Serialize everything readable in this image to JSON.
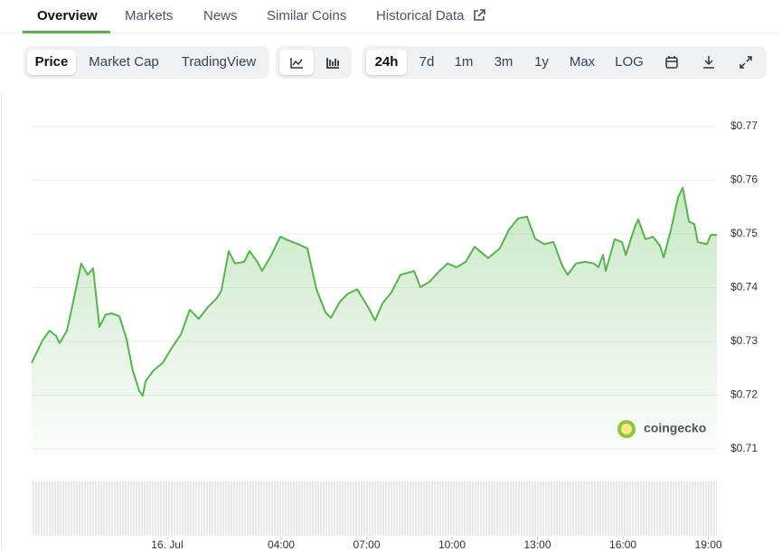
{
  "tabs": [
    {
      "label": "Overview",
      "active": true
    },
    {
      "label": "Markets",
      "active": false
    },
    {
      "label": "News",
      "active": false
    },
    {
      "label": "Similar Coins",
      "active": false
    },
    {
      "label": "Historical Data",
      "active": false
    }
  ],
  "toolbar": {
    "views": [
      {
        "label": "Price",
        "active": true
      },
      {
        "label": "Market Cap",
        "active": false
      },
      {
        "label": "TradingView",
        "active": false
      }
    ],
    "ranges": [
      {
        "label": "24h",
        "active": true
      },
      {
        "label": "7d",
        "active": false
      },
      {
        "label": "1m",
        "active": false
      },
      {
        "label": "3m",
        "active": false
      },
      {
        "label": "1y",
        "active": false
      },
      {
        "label": "Max",
        "active": false
      },
      {
        "label": "LOG",
        "active": false
      }
    ]
  },
  "watermark": "coingecko",
  "chart_data": {
    "type": "area",
    "color": "#57b34d",
    "grid": true,
    "x": [
      -4.76,
      -4.38,
      -4.13,
      -3.9,
      -3.78,
      -3.52,
      -3.27,
      -3.02,
      -2.79,
      -2.6,
      -2.38,
      -2.16,
      -1.94,
      -1.68,
      -1.43,
      -1.21,
      -0.98,
      -0.86,
      -0.76,
      -0.48,
      -0.16,
      0.16,
      0.48,
      0.79,
      1.11,
      1.43,
      1.75,
      1.9,
      2.16,
      2.38,
      2.7,
      2.89,
      3.17,
      3.33,
      3.65,
      3.97,
      4.16,
      4.6,
      4.92,
      5.24,
      5.56,
      5.75,
      6.06,
      6.35,
      6.67,
      7.05,
      7.3,
      7.56,
      7.87,
      8.19,
      8.67,
      8.89,
      9.21,
      9.52,
      9.84,
      10.16,
      10.48,
      10.79,
      11.27,
      11.68,
      12.0,
      12.32,
      12.63,
      12.92,
      13.24,
      13.56,
      13.87,
      14.06,
      14.35,
      14.67,
      14.98,
      15.14,
      15.3,
      15.4,
      15.71,
      15.97,
      16.1,
      16.41,
      16.54,
      16.79,
      17.05,
      17.3,
      17.43,
      17.68,
      17.94,
      18.1,
      18.32,
      18.51,
      18.63,
      18.95,
      19.08,
      19.3
    ],
    "values": [
      0.726,
      0.7302,
      0.732,
      0.731,
      0.7297,
      0.732,
      0.7381,
      0.7445,
      0.7424,
      0.7436,
      0.7327,
      0.735,
      0.7352,
      0.7347,
      0.7305,
      0.7246,
      0.7208,
      0.7199,
      0.7226,
      0.7246,
      0.726,
      0.7288,
      0.7313,
      0.7359,
      0.7342,
      0.7364,
      0.7381,
      0.7394,
      0.7468,
      0.7445,
      0.7448,
      0.7468,
      0.7448,
      0.7431,
      0.746,
      0.7495,
      0.749,
      0.7481,
      0.7473,
      0.7397,
      0.7354,
      0.7344,
      0.7374,
      0.7389,
      0.7397,
      0.7364,
      0.7339,
      0.7371,
      0.7391,
      0.7424,
      0.7431,
      0.7401,
      0.7411,
      0.7429,
      0.7445,
      0.7438,
      0.7448,
      0.7476,
      0.7455,
      0.7473,
      0.7508,
      0.7529,
      0.7532,
      0.7491,
      0.7481,
      0.7485,
      0.7441,
      0.7424,
      0.7445,
      0.7448,
      0.7445,
      0.7438,
      0.7461,
      0.7431,
      0.749,
      0.7485,
      0.7461,
      0.7512,
      0.7527,
      0.749,
      0.7495,
      0.7478,
      0.7456,
      0.7507,
      0.7569,
      0.7586,
      0.7523,
      0.7518,
      0.7485,
      0.7481,
      0.7498,
      0.7498
    ],
    "xlim": [
      -4.76,
      19.3
    ],
    "xticks": [
      {
        "value": 0,
        "label": "16. Jul"
      },
      {
        "value": 4,
        "label": "04:00"
      },
      {
        "value": 7,
        "label": "07:00"
      },
      {
        "value": 10,
        "label": "10:00"
      },
      {
        "value": 13,
        "label": "13:00"
      },
      {
        "value": 16,
        "label": "16:00"
      },
      {
        "value": 19,
        "label": "19:00"
      }
    ],
    "ylim": [
      0.709,
      0.772
    ],
    "yticks": [
      {
        "value": 0.71,
        "label": "$0.71"
      },
      {
        "value": 0.72,
        "label": "$0.72"
      },
      {
        "value": 0.73,
        "label": "$0.73"
      },
      {
        "value": 0.74,
        "label": "$0.74"
      },
      {
        "value": 0.75,
        "label": "$0.75"
      },
      {
        "value": 0.76,
        "label": "$0.76"
      },
      {
        "value": 0.77,
        "label": "$0.77"
      }
    ]
  }
}
